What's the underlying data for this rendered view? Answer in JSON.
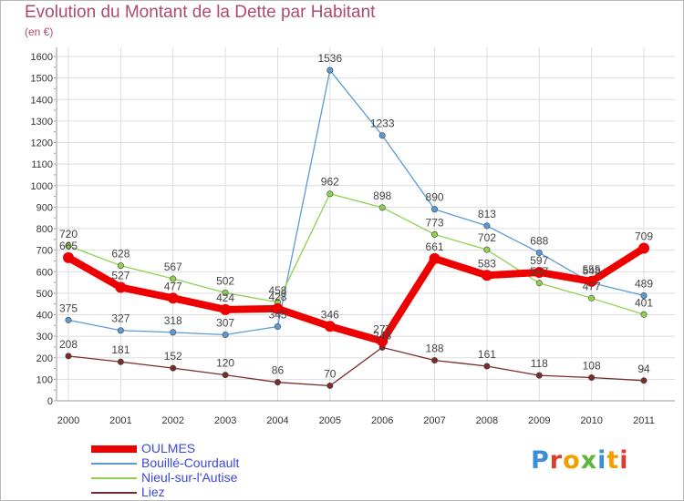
{
  "title": "Evolution du Montant de la Dette par Habitant",
  "unit_label": "(en €)",
  "logo": {
    "text": "Proxiti",
    "letters": [
      "P",
      "r",
      "o",
      "x",
      "i",
      "t",
      "i"
    ]
  },
  "chart_data": {
    "type": "line",
    "title": "Evolution du Montant de la Dette par Habitant",
    "subtitle": "(en €)",
    "xlabel": "",
    "ylabel": "",
    "x": [
      "2000",
      "2001",
      "2002",
      "2003",
      "2004",
      "2005",
      "2006",
      "2007",
      "2008",
      "2009",
      "2010",
      "2011"
    ],
    "ylim": [
      0,
      1600
    ],
    "yticks": [
      "0",
      "100",
      "200",
      "300",
      "400",
      "500",
      "600",
      "700",
      "800",
      "900",
      "1000",
      "1100",
      "1200",
      "1300",
      "1400",
      "1500",
      "1600"
    ],
    "grid": true,
    "legend_position": "bottom-left",
    "series": [
      {
        "name": "Bouillé-Courdault",
        "color": "#5b9bd5",
        "values": [
          375,
          327,
          318,
          307,
          345,
          1536,
          1233,
          890,
          813,
          688,
          548,
          489
        ],
        "labels": [
          "375",
          "327",
          "318",
          "307",
          "345",
          "1536",
          "1233",
          "890",
          "813",
          "688",
          "548",
          "489"
        ]
      },
      {
        "name": "Nieul-sur-l'Autise",
        "color": "#8fd14f",
        "values": [
          720,
          628,
          567,
          502,
          458,
          962,
          898,
          773,
          702,
          547,
          477,
          401
        ],
        "labels": [
          "720",
          "628",
          "567",
          "502",
          "458",
          "962",
          "898",
          "773",
          "702",
          "547",
          "477",
          "401"
        ]
      },
      {
        "name": "Liez",
        "color": "#7b2b2b",
        "values": [
          208,
          181,
          152,
          120,
          86,
          70,
          248,
          188,
          161,
          118,
          108,
          94
        ],
        "labels": [
          "208",
          "181",
          "152",
          "120",
          "86",
          "70",
          "248",
          "188",
          "161",
          "118",
          "108",
          "94"
        ]
      },
      {
        "name": "OULMES",
        "color": "#ee0000",
        "values": [
          665,
          527,
          477,
          424,
          428,
          346,
          277,
          661,
          583,
          597,
          555,
          709
        ],
        "labels": [
          "665",
          "527",
          "477",
          "424",
          "428",
          "346",
          "277",
          "661",
          "583",
          "597",
          "555",
          "709"
        ]
      }
    ],
    "legend": [
      {
        "name": "OULMES",
        "color": "#ee0000"
      },
      {
        "name": "Bouillé-Courdault",
        "color": "#5b9bd5"
      },
      {
        "name": "Nieul-sur-l'Autise",
        "color": "#8fd14f"
      },
      {
        "name": "Liez",
        "color": "#7b2b2b"
      }
    ]
  }
}
